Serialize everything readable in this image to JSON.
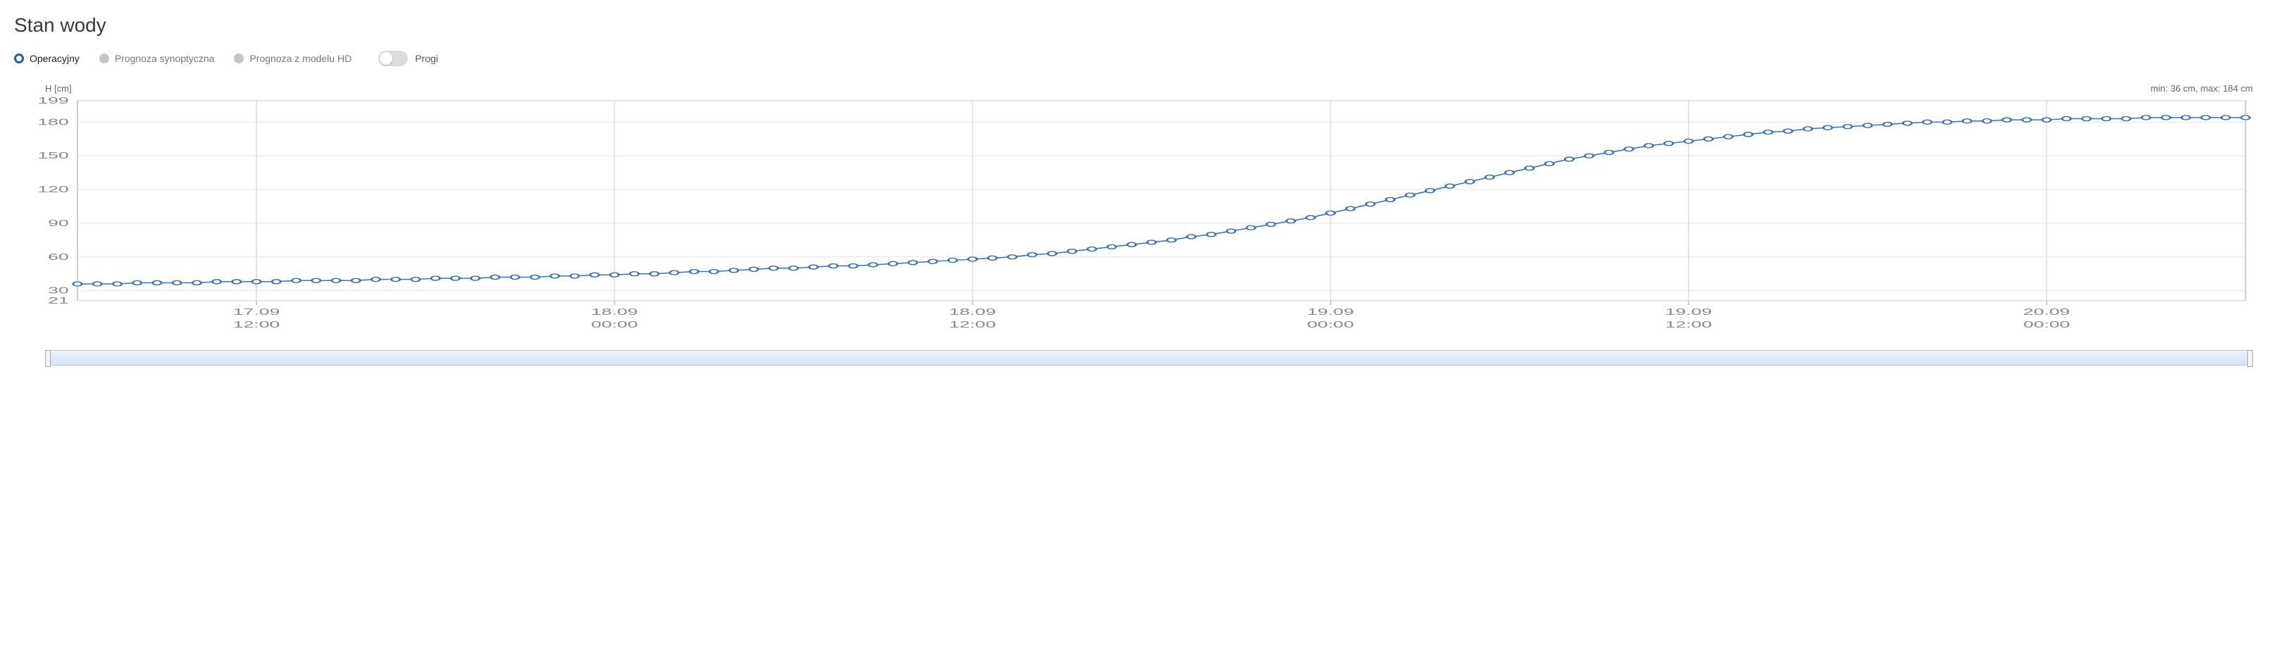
{
  "title": "Stan wody",
  "legend": {
    "items": [
      {
        "label": "Operacyjny",
        "active": true
      },
      {
        "label": "Prognoza synoptyczna",
        "active": false
      },
      {
        "label": "Prognoza z modelu HD",
        "active": false
      }
    ],
    "toggle_label": "Progi"
  },
  "chart": {
    "type": "line",
    "y_axis_label": "H [cm]",
    "stats_text": "min: 36 cm, max: 184 cm",
    "y_ticks": [
      21,
      30,
      60,
      90,
      120,
      150,
      180,
      199
    ],
    "y_major_ticks": [
      30,
      60,
      90,
      120,
      150,
      180
    ],
    "ylim": [
      21,
      199
    ],
    "x_ticks": [
      {
        "pos": 9,
        "line1": "17.09",
        "line2": "12:00"
      },
      {
        "pos": 27,
        "line1": "18.09",
        "line2": "00:00"
      },
      {
        "pos": 45,
        "line1": "18.09",
        "line2": "12:00"
      },
      {
        "pos": 63,
        "line1": "19.09",
        "line2": "00:00"
      },
      {
        "pos": 81,
        "line1": "19.09",
        "line2": "12:00"
      },
      {
        "pos": 99,
        "line1": "20.09",
        "line2": "00:00"
      }
    ],
    "x_range": [
      0,
      109
    ],
    "series": {
      "color": "#3b72b5",
      "line_width": 1.5,
      "marker_radius": 3,
      "marker_fill": "#ffffff",
      "data": [
        36,
        36,
        36,
        37,
        37,
        37,
        37,
        38,
        38,
        38,
        38,
        39,
        39,
        39,
        39,
        40,
        40,
        40,
        41,
        41,
        41,
        42,
        42,
        42,
        43,
        43,
        44,
        44,
        45,
        45,
        46,
        47,
        47,
        48,
        49,
        50,
        50,
        51,
        52,
        52,
        53,
        54,
        55,
        56,
        57,
        58,
        59,
        60,
        62,
        63,
        65,
        67,
        69,
        71,
        73,
        75,
        78,
        80,
        83,
        86,
        89,
        92,
        95,
        99,
        103,
        107,
        111,
        115,
        119,
        123,
        127,
        131,
        135,
        139,
        143,
        147,
        150,
        153,
        156,
        159,
        161,
        163,
        165,
        167,
        169,
        171,
        172,
        174,
        175,
        176,
        177,
        178,
        179,
        180,
        180,
        181,
        181,
        182,
        182,
        182,
        183,
        183,
        183,
        183,
        184,
        184,
        184,
        184,
        184,
        184
      ]
    },
    "background_color": "#ffffff",
    "grid_color": "#e5e5e5",
    "axis_color": "#cccccc",
    "tick_label_color": "#888888",
    "tick_label_fontsize": 13
  }
}
